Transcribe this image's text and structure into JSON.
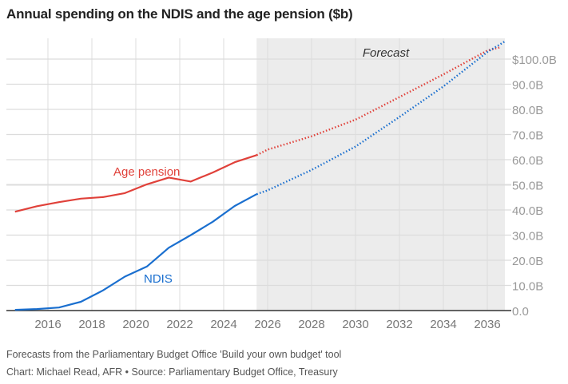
{
  "title": "Annual spending on the NDIS and the age pension ($b)",
  "footnote": "Forecasts from the Parliamentary Budget Office 'Build your own budget' tool",
  "credit": "Chart: Michael Read, AFR • Source: Parliamentary Budget Office, Treasury",
  "chart_data": {
    "type": "line",
    "title": "Annual spending on the NDIS and the age pension ($b)",
    "xlim": [
      2014.2,
      2036.8
    ],
    "ylim": [
      0,
      108
    ],
    "x_ticks": [
      2016,
      2018,
      2020,
      2022,
      2024,
      2026,
      2028,
      2030,
      2032,
      2034,
      2036
    ],
    "x_tick_labels": [
      "2016",
      "2018",
      "2020",
      "2022",
      "2024",
      "2026",
      "2028",
      "2030",
      "2032",
      "2034",
      "2036"
    ],
    "y_ticks": [
      0,
      10,
      20,
      30,
      40,
      50,
      60,
      70,
      80,
      90,
      100
    ],
    "y_tick_labels": [
      "0.0",
      "10.0B",
      "20.0B",
      "30.0B",
      "40.0B",
      "50.0B",
      "60.0B",
      "70.0B",
      "80.0B",
      "90.0B",
      "$100.0B"
    ],
    "grid": true,
    "forecast_region": {
      "label": "Forecast",
      "start": 2025.5,
      "end": 2036.8
    },
    "colors": {
      "age_pension": "#e0413a",
      "ndis": "#1a6fcf",
      "forecast_bg": "#ececec"
    },
    "series": [
      {
        "name": "Age pension",
        "key": "age_pension",
        "actual": {
          "x": [
            2014.5,
            2015.5,
            2016.5,
            2017.5,
            2018.5,
            2019.5,
            2020.5,
            2021.5,
            2022.5,
            2023.5,
            2024.5,
            2025.5
          ],
          "y": [
            39.3,
            41.5,
            43.1,
            44.5,
            45.1,
            46.7,
            50.2,
            52.9,
            51.3,
            54.9,
            59.0,
            61.8
          ]
        },
        "forecast": {
          "x": [
            2025.5,
            2026,
            2028,
            2030,
            2032,
            2034,
            2036,
            2036.6
          ],
          "y": [
            61.8,
            64.0,
            69.3,
            75.9,
            84.9,
            93.9,
            103.4,
            104.7
          ]
        }
      },
      {
        "name": "NDIS",
        "key": "ndis",
        "actual": {
          "x": [
            2014.5,
            2015.5,
            2016.5,
            2017.5,
            2018.5,
            2019.5,
            2020.5,
            2021.5,
            2022.5,
            2023.5,
            2024.5,
            2025.5
          ],
          "y": [
            0.3,
            0.6,
            1.2,
            3.5,
            8.0,
            13.5,
            17.5,
            25.0,
            30.0,
            35.3,
            41.6,
            46.3
          ]
        },
        "forecast": {
          "x": [
            2025.5,
            2026,
            2028,
            2030,
            2032,
            2034,
            2036,
            2036.8
          ],
          "y": [
            46.3,
            47.8,
            55.9,
            65.2,
            77.0,
            89.1,
            102.8,
            107.0
          ]
        }
      }
    ]
  }
}
